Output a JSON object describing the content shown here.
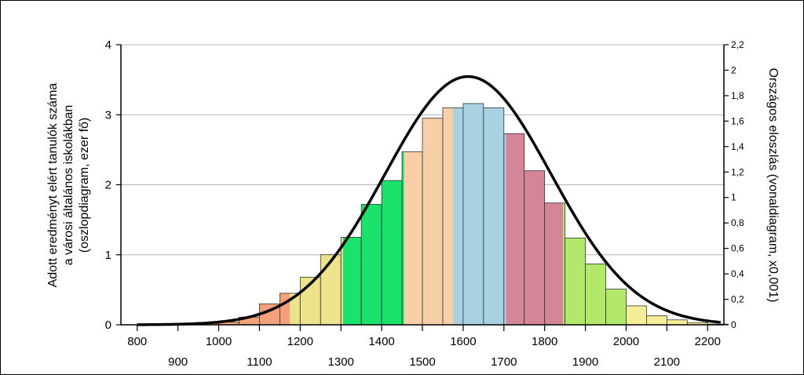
{
  "chart_data": {
    "type": "bar",
    "title": "",
    "ylabel_left": [
      "Adott eredményt elért tanulók száma",
      "a városi általános iskolákban",
      "(oszlopdiagram, ezer fő)"
    ],
    "ylabel_right": "Országos eloszlás (vonaldiagram, x0,001)",
    "x_range": [
      760,
      2240
    ],
    "ylim_left": [
      0,
      4
    ],
    "ylim_right": [
      0,
      2.2
    ],
    "left_ticks": [
      "0",
      "1",
      "2",
      "3",
      "4"
    ],
    "right_ticks": [
      "0",
      "0,2",
      "0,4",
      "0,6",
      "0,8",
      "1",
      "1,2",
      "1,4",
      "1,6",
      "1,8",
      "2",
      "2,2"
    ],
    "x_ticks_upper": [
      "800",
      "1000",
      "1200",
      "1400",
      "1600",
      "1800",
      "2000",
      "2200"
    ],
    "x_ticks_lower": [
      "900",
      "1100",
      "1300",
      "1500",
      "1700",
      "1900",
      "2100"
    ],
    "grid": true,
    "bin_width": 50,
    "bars": [
      {
        "start": 800,
        "value": 0.0
      },
      {
        "start": 850,
        "value": 0.005
      },
      {
        "start": 900,
        "value": 0.01
      },
      {
        "start": 950,
        "value": 0.02
      },
      {
        "start": 1000,
        "value": 0.04
      },
      {
        "start": 1050,
        "value": 0.11
      },
      {
        "start": 1100,
        "value": 0.3
      },
      {
        "start": 1150,
        "value": 0.45
      },
      {
        "start": 1200,
        "value": 0.68
      },
      {
        "start": 1250,
        "value": 1.0
      },
      {
        "start": 1300,
        "value": 1.25
      },
      {
        "start": 1350,
        "value": 1.72
      },
      {
        "start": 1400,
        "value": 2.06
      },
      {
        "start": 1450,
        "value": 2.47
      },
      {
        "start": 1500,
        "value": 2.95
      },
      {
        "start": 1550,
        "value": 3.1
      },
      {
        "start": 1600,
        "value": 3.16
      },
      {
        "start": 1650,
        "value": 3.1
      },
      {
        "start": 1700,
        "value": 2.73
      },
      {
        "start": 1750,
        "value": 2.2
      },
      {
        "start": 1800,
        "value": 1.74
      },
      {
        "start": 1850,
        "value": 1.24
      },
      {
        "start": 1900,
        "value": 0.87
      },
      {
        "start": 1950,
        "value": 0.51
      },
      {
        "start": 2000,
        "value": 0.27
      },
      {
        "start": 2050,
        "value": 0.13
      },
      {
        "start": 2100,
        "value": 0.07
      },
      {
        "start": 2150,
        "value": 0.03
      },
      {
        "start": 2200,
        "value": 0.01
      }
    ],
    "color_bands": [
      {
        "from": 760,
        "to": 1175,
        "color": "#f4a07a"
      },
      {
        "from": 1175,
        "to": 1305,
        "color": "#ece38a"
      },
      {
        "from": 1305,
        "to": 1455,
        "color": "#19e36b"
      },
      {
        "from": 1455,
        "to": 1575,
        "color": "#f8cfa6"
      },
      {
        "from": 1575,
        "to": 1705,
        "color": "#a8d2e2"
      },
      {
        "from": 1705,
        "to": 1845,
        "color": "#d48597"
      },
      {
        "from": 1845,
        "to": 2000,
        "color": "#b3e96a"
      },
      {
        "from": 2000,
        "to": 2240,
        "color": "#f5ee98"
      }
    ],
    "line": {
      "type": "normal",
      "mean": 1612,
      "sd": 204,
      "scale": 1.95,
      "x_from": 800,
      "x_to": 2235
    }
  }
}
